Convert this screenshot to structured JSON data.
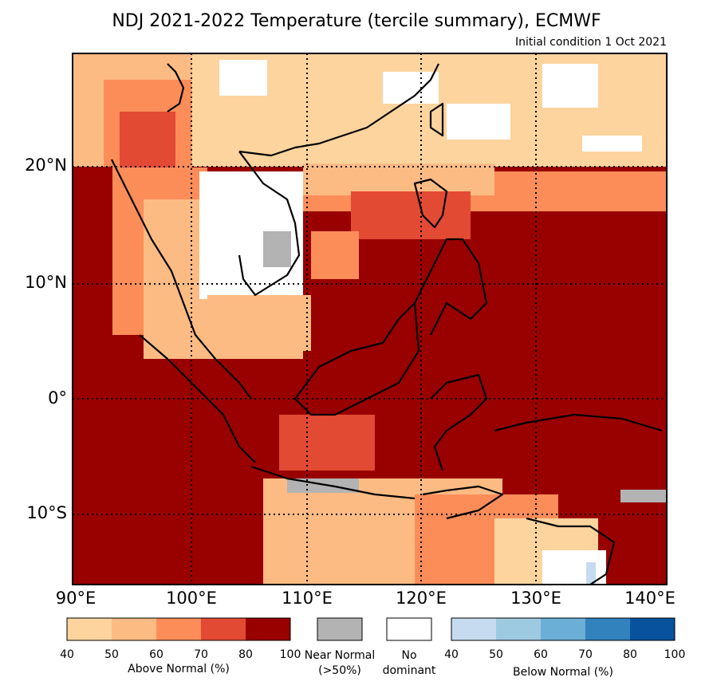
{
  "title": "NDJ 2021-2022 Temperature (tercile summary), ECMWF",
  "subtitle": "Initial condition 1 Oct 2021",
  "map": {
    "lat_labels": [
      "20°N",
      "10°N",
      "0°",
      "10°S"
    ],
    "lon_labels": [
      "90°E",
      "100°E",
      "110°E",
      "120°E",
      "130°E",
      "140°E"
    ]
  },
  "legend": {
    "above": {
      "ticks": [
        "40",
        "50",
        "60",
        "70",
        "80",
        "100"
      ],
      "caption": "Above Normal (%)",
      "colors": [
        "#fdd49e",
        "#fdbb84",
        "#fc8d59",
        "#e34a33",
        "#990000"
      ]
    },
    "near": {
      "line1": "Near Normal",
      "line2": "(>50%)",
      "color": "#b3b3b3"
    },
    "nodom": {
      "line1": "No",
      "line2": "dominant",
      "color": "#ffffff"
    },
    "below": {
      "ticks": [
        "40",
        "50",
        "60",
        "70",
        "80",
        "100"
      ],
      "caption": "Below Normal (%)",
      "colors": [
        "#c6dbef",
        "#9ecae1",
        "#6baed6",
        "#3182bd",
        "#08519c"
      ]
    }
  }
}
